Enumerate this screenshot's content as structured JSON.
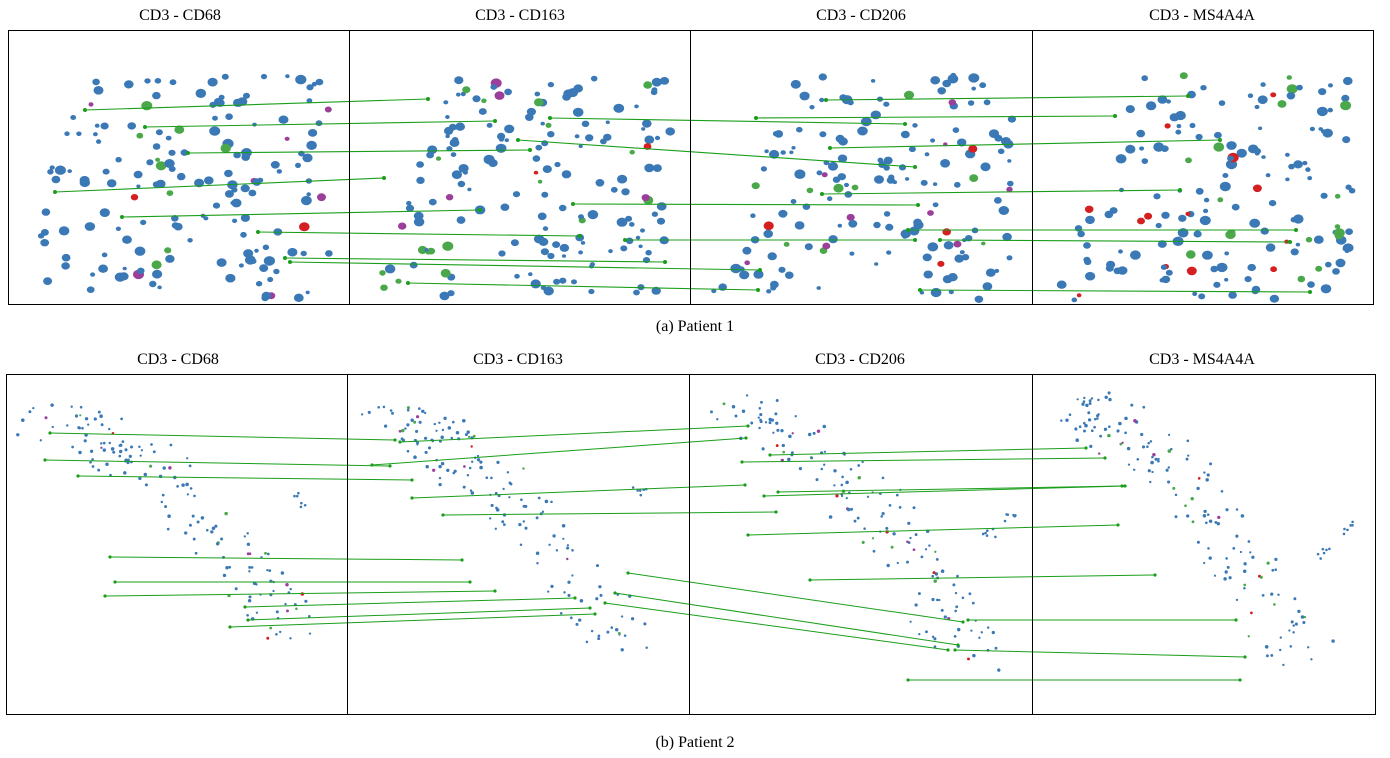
{
  "figures": [
    {
      "caption": "(a) Patient 1",
      "panels": [
        "CD3 - CD68",
        "CD3 - CD163",
        "CD3 - CD206",
        "CD3 - MS4A4A"
      ]
    },
    {
      "caption": "(b) Patient 2",
      "panels": [
        "CD3 - CD68",
        "CD3 - CD163",
        "CD3 - CD206",
        "CD3 - MS4A4A"
      ]
    }
  ],
  "colors": {
    "cell_blue": "#3a79b5",
    "cell_green": "#4aa84a",
    "cell_purple": "#9b3f9b",
    "cell_red": "#d42020",
    "match_line": "#1a9e1a",
    "frame": "#000000"
  }
}
